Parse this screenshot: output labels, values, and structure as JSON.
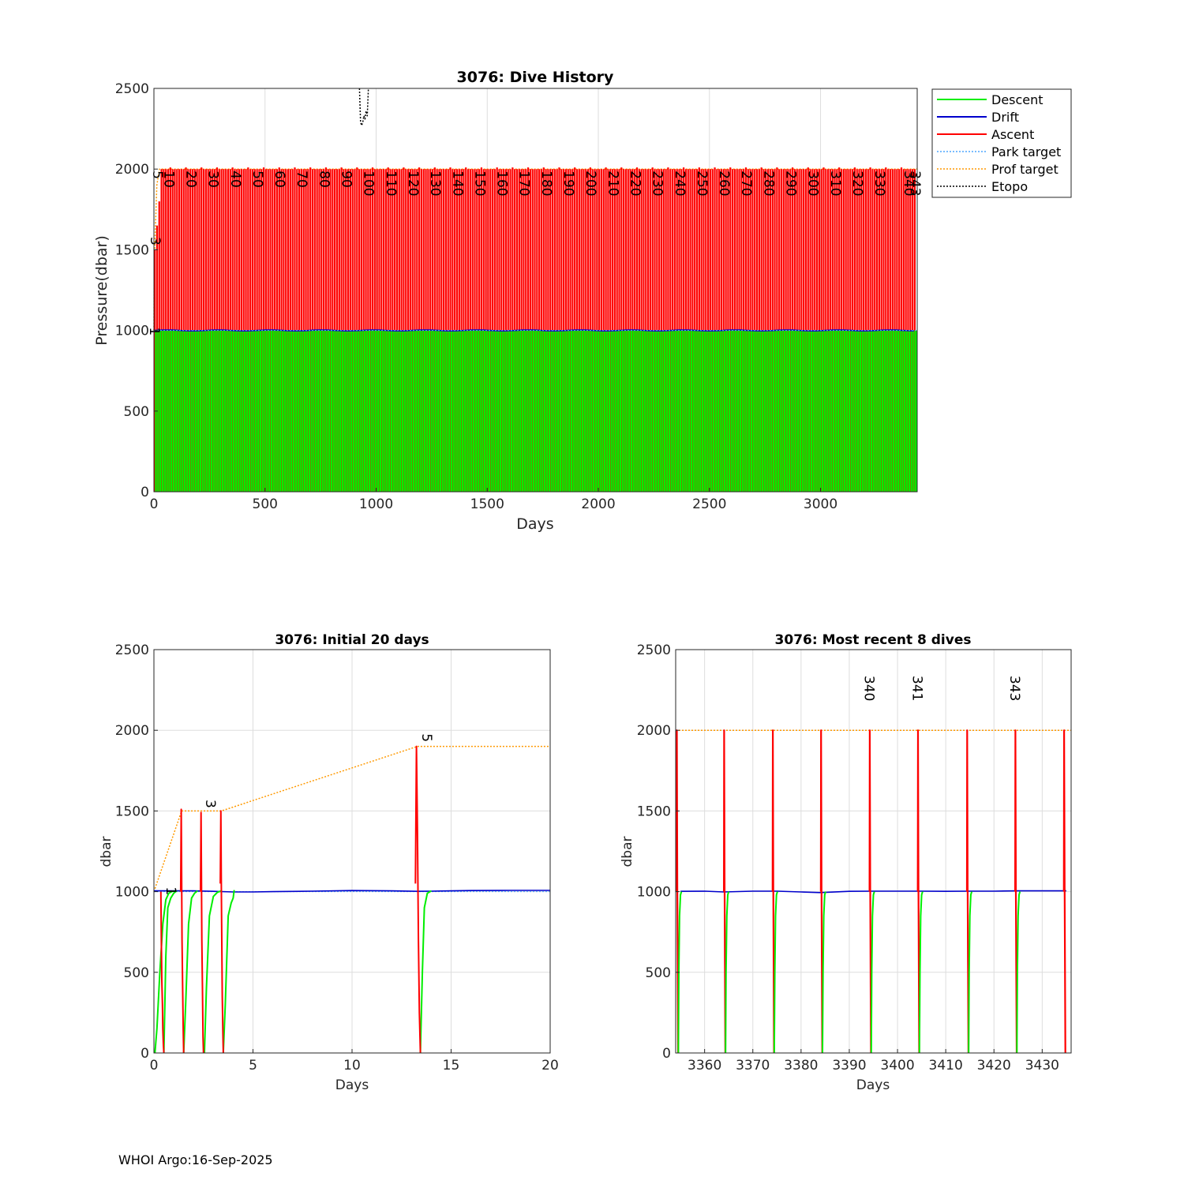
{
  "footer": "WHOI Argo:16-Sep-2025",
  "colors": {
    "descent": "#00ee00",
    "drift": "#0000cc",
    "ascent": "#ff0000",
    "park_target": "#4da6ff",
    "prof_target": "#ff9900",
    "etopo": "#000000",
    "grid": "#dddddd"
  },
  "chart_data": [
    {
      "id": "dive-history",
      "type": "line",
      "title": "3076: Dive History",
      "xlabel": "Days",
      "ylabel": "Pressure(dbar)",
      "xlim": [
        0,
        3435
      ],
      "ylim": [
        2500,
        0
      ],
      "xticks": [
        0,
        500,
        1000,
        1500,
        2000,
        2500,
        3000
      ],
      "yticks": [
        0,
        500,
        1000,
        1500,
        2000,
        2500
      ],
      "legend": {
        "placement": "outside-top-right",
        "entries": [
          "Descent",
          "Drift",
          "Ascent",
          "Park target",
          "Prof target",
          "Etopo"
        ]
      },
      "n_dives": 343,
      "dive_interval_days": 10,
      "park_pressure": 1000,
      "profile_pressure": 2000,
      "dive_labels": {
        "values": [
          "1",
          "3",
          "5",
          "10",
          "20",
          "30",
          "40",
          "50",
          "60",
          "70",
          "80",
          "90",
          "100",
          "110",
          "120",
          "130",
          "140",
          "150",
          "160",
          "170",
          "180",
          "190",
          "200",
          "210",
          "220",
          "230",
          "240",
          "250",
          "260",
          "270",
          "280",
          "290",
          "300",
          "310",
          "320",
          "330",
          "340",
          "343"
        ],
        "days": [
          0.8,
          3.5,
          13.5,
          65,
          165,
          265,
          365,
          465,
          565,
          665,
          765,
          865,
          965,
          1065,
          1165,
          1265,
          1365,
          1465,
          1565,
          1665,
          1765,
          1865,
          1965,
          2065,
          2165,
          2265,
          2365,
          2465,
          2565,
          2665,
          2765,
          2865,
          2965,
          3065,
          3165,
          3265,
          3395,
          3425
        ],
        "pressures": [
          1040,
          1600,
          2010,
          2010,
          2010,
          2010,
          2010,
          2010,
          2010,
          2010,
          2010,
          2010,
          2010,
          2010,
          2010,
          2010,
          2010,
          2010,
          2010,
          2010,
          2010,
          2010,
          2010,
          2010,
          2010,
          2010,
          2010,
          2010,
          2010,
          2010,
          2010,
          2010,
          2010,
          2010,
          2010,
          2010,
          2010,
          2010
        ]
      },
      "etopo": {
        "x": [
          925,
          930,
          935,
          940,
          945,
          950,
          955,
          960,
          965
        ],
        "y": [
          2500,
          2290,
          2270,
          2290,
          2330,
          2310,
          2360,
          2330,
          2500
        ]
      }
    },
    {
      "id": "initial-20-days",
      "type": "line",
      "title": "3076: Initial 20 days",
      "xlabel": "Days",
      "ylabel": "dbar",
      "xlim": [
        0,
        20
      ],
      "ylim": [
        2500,
        0
      ],
      "xticks": [
        0,
        5,
        10,
        15,
        20
      ],
      "yticks": [
        0,
        500,
        1000,
        1500,
        2000,
        2500
      ],
      "dive_labels": [
        {
          "label": "1",
          "day": 0.4,
          "pressure": 1040
        },
        {
          "label": "3",
          "day": 2.4,
          "pressure": 1580
        },
        {
          "label": "5",
          "day": 13.3,
          "pressure": 1990
        }
      ],
      "descent": [
        {
          "x": [
            0.05,
            0.15,
            0.3,
            0.45,
            0.6,
            0.75,
            0.9,
            1.0
          ],
          "y": [
            0,
            150,
            500,
            800,
            950,
            990,
            1000,
            1005
          ]
        },
        {
          "x": [
            0.5,
            0.6,
            0.7,
            0.85,
            1.0,
            1.15
          ],
          "y": [
            0,
            600,
            900,
            960,
            990,
            1005
          ]
        },
        {
          "x": [
            1.5,
            1.6,
            1.75,
            1.9,
            2.05,
            2.2
          ],
          "y": [
            0,
            300,
            800,
            960,
            990,
            1005
          ]
        },
        {
          "x": [
            2.55,
            2.65,
            2.8,
            3.0,
            3.2,
            3.4
          ],
          "y": [
            0,
            400,
            850,
            970,
            995,
            1005
          ]
        },
        {
          "x": [
            3.5,
            3.6,
            3.75,
            3.9,
            4.0,
            4.05
          ],
          "y": [
            0,
            300,
            850,
            930,
            960,
            1010
          ]
        },
        {
          "x": [
            13.45,
            13.55,
            13.65,
            13.8,
            14.0
          ],
          "y": [
            0,
            500,
            900,
            990,
            1005
          ]
        }
      ],
      "drift": {
        "x": [
          0,
          1,
          2,
          3,
          4,
          5,
          6,
          8,
          10,
          12,
          13.3,
          14,
          15,
          16,
          18,
          20
        ],
        "y": [
          1005,
          1005,
          1005,
          1002,
          998,
          998,
          1000,
          1003,
          1007,
          1005,
          1002,
          1003,
          1005,
          1007,
          1008,
          1008
        ]
      },
      "ascent": [
        {
          "x": [
            0.35,
            0.38,
            0.4,
            0.43,
            0.45,
            0.48,
            0.5
          ],
          "y": [
            1000,
            650,
            450,
            300,
            150,
            50,
            0
          ]
        },
        {
          "x": [
            1.35,
            1.38,
            1.4,
            1.42,
            1.45,
            1.48,
            1.5
          ],
          "y": [
            1000,
            1510,
            1100,
            700,
            400,
            150,
            0
          ]
        },
        {
          "x": [
            2.35,
            2.38,
            2.4,
            2.42,
            2.45,
            2.48,
            2.5
          ],
          "y": [
            1000,
            1490,
            1100,
            700,
            400,
            100,
            0
          ]
        },
        {
          "x": [
            3.35,
            3.38,
            3.4,
            3.42,
            3.45,
            3.48,
            3.5
          ],
          "y": [
            1050,
            1500,
            1100,
            800,
            350,
            150,
            0
          ]
        },
        {
          "x": [
            13.2,
            13.25,
            13.3,
            13.35,
            13.4,
            13.45
          ],
          "y": [
            1050,
            1900,
            1400,
            700,
            250,
            0
          ]
        }
      ],
      "prof_target": {
        "x": [
          0,
          1.4,
          3.4,
          13.3,
          20
        ],
        "y": [
          1000,
          1500,
          1500,
          1900,
          1900
        ]
      },
      "park_target": {
        "x": [
          0,
          20
        ],
        "y": [
          1000,
          1000
        ]
      }
    },
    {
      "id": "recent-8-dives",
      "type": "line",
      "title": "3076: Most recent 8 dives",
      "xlabel": "Days",
      "ylabel": "dbar",
      "xlim": [
        3354,
        3436
      ],
      "ylim": [
        2500,
        0
      ],
      "xticks": [
        3360,
        3370,
        3380,
        3390,
        3400,
        3410,
        3420,
        3430
      ],
      "yticks": [
        0,
        500,
        1000,
        1500,
        2000,
        2500
      ],
      "dive_days": [
        3354.5,
        3364.3,
        3374.4,
        3384.4,
        3394.5,
        3404.5,
        3414.7,
        3424.7,
        3434.8
      ],
      "dive_labels": [
        {
          "label": "340",
          "day": 3394.5,
          "pressure": 2070
        },
        {
          "label": "341",
          "day": 3404.5,
          "pressure": 2070
        },
        {
          "label": "343",
          "day": 3424.7,
          "pressure": 2070
        }
      ],
      "drift": {
        "x": [
          3355,
          3360,
          3364,
          3370,
          3375,
          3380,
          3384,
          3390,
          3395,
          3400,
          3405,
          3410,
          3415,
          3420,
          3425,
          3430,
          3435
        ],
        "y": [
          1002,
          1003,
          998,
          1003,
          1003,
          998,
          994,
          1002,
          1003,
          1003,
          1003,
          1002,
          1003,
          1003,
          1005,
          1005,
          1005
        ]
      },
      "prof_target": {
        "x": [
          3354,
          3436
        ],
        "y": [
          2000,
          2000
        ]
      }
    }
  ]
}
